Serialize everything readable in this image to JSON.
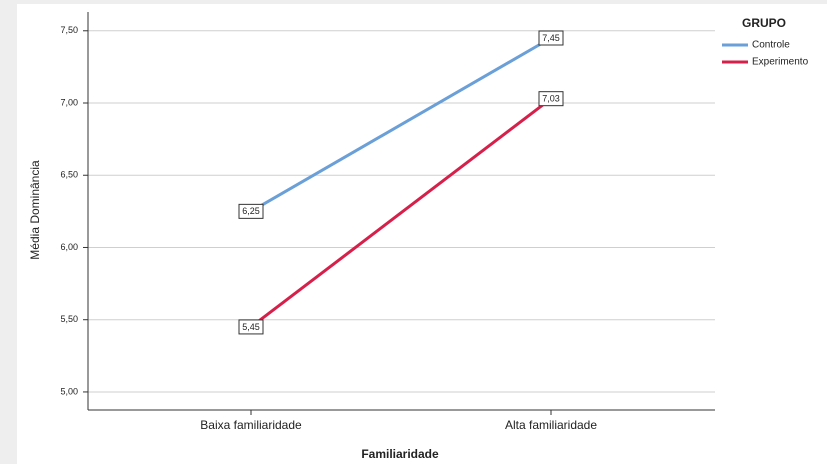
{
  "chart_data": {
    "type": "line",
    "x_label": "Familiaridade",
    "y_label": "Média Dominância",
    "legend_title": "GRUPO",
    "legend": "top-right-outside",
    "grid": true,
    "categories": [
      "Baixa familiaridade",
      "Alta familiaridade"
    ],
    "series": [
      {
        "name": "Controle",
        "color": "#6a9fd8",
        "values": [
          6.25,
          7.45
        ],
        "value_labels": [
          "6,25",
          "7,45"
        ]
      },
      {
        "name": "Experimento",
        "color": "#d6204a",
        "values": [
          5.45,
          7.03
        ],
        "value_labels": [
          "5,45",
          "7,03"
        ]
      }
    ],
    "ylim": [
      4.875,
      7.63
    ],
    "yticks": [
      {
        "value": 5,
        "label": "5,00"
      },
      {
        "value": 5.5,
        "label": "5,50"
      },
      {
        "value": 6,
        "label": "6,00"
      },
      {
        "value": 6.5,
        "label": "6,50"
      },
      {
        "value": 7,
        "label": "7,00"
      },
      {
        "value": 7.5,
        "label": "7,50"
      }
    ]
  }
}
